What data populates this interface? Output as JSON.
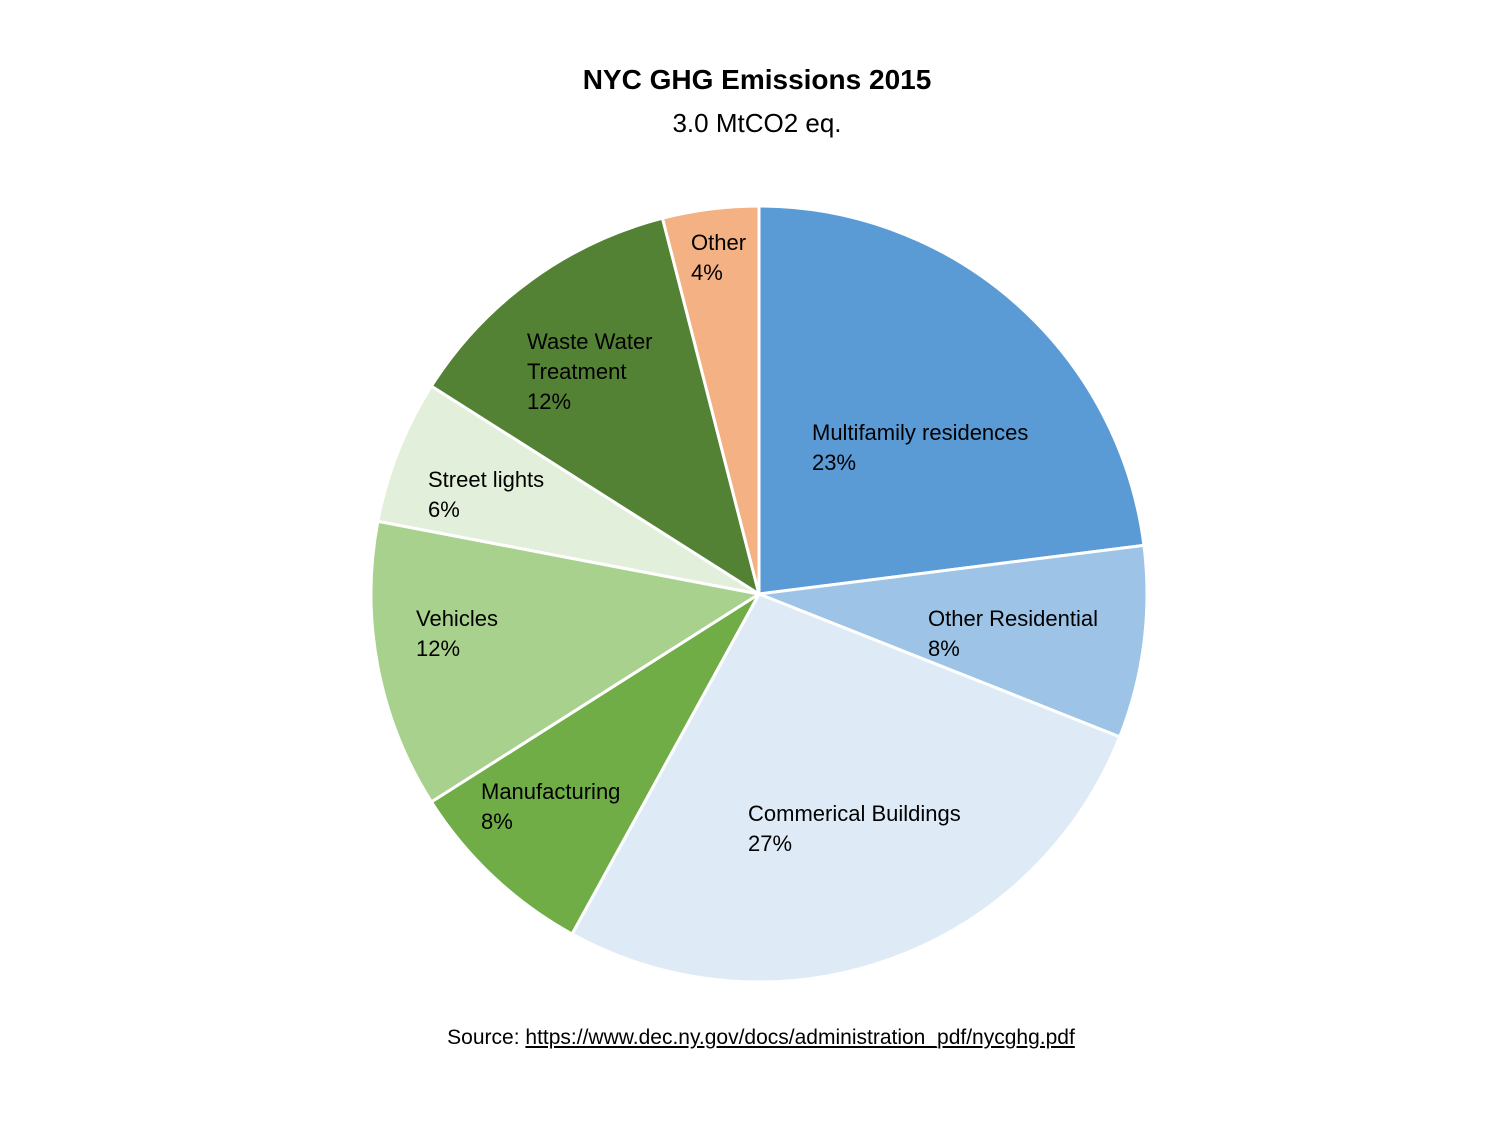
{
  "chart_data": {
    "type": "pie",
    "title": "NYC GHG Emissions 2015",
    "subtitle": "3.0 MtCO2 eq.",
    "slices": [
      {
        "label": [
          "Multifamily residences"
        ],
        "pct_text": "23%",
        "value": 23,
        "color": "#5b9bd5"
      },
      {
        "label": [
          "Other Residential"
        ],
        "pct_text": "8%",
        "value": 8,
        "color": "#9dc3e6"
      },
      {
        "label": [
          "Commerical Buildings"
        ],
        "pct_text": "27%",
        "value": 27,
        "color": "#deebf7"
      },
      {
        "label": [
          "Manufacturing"
        ],
        "pct_text": "8%",
        "value": 8,
        "color": "#70ad47"
      },
      {
        "label": [
          "Vehicles"
        ],
        "pct_text": "12%",
        "value": 12,
        "color": "#a9d18e"
      },
      {
        "label": [
          "Street lights"
        ],
        "pct_text": "6%",
        "value": 6,
        "color": "#e2efda"
      },
      {
        "label": [
          "Waste Water",
          "Treatment"
        ],
        "pct_text": "12%",
        "value": 12,
        "color": "#548235"
      },
      {
        "label": [
          "Other"
        ],
        "pct_text": "4%",
        "value": 4,
        "color": "#f4b183"
      }
    ]
  },
  "source": {
    "prefix": "Source: ",
    "url": "https://www.dec.ny.gov/docs/administration_pdf/nycghg.pdf"
  }
}
